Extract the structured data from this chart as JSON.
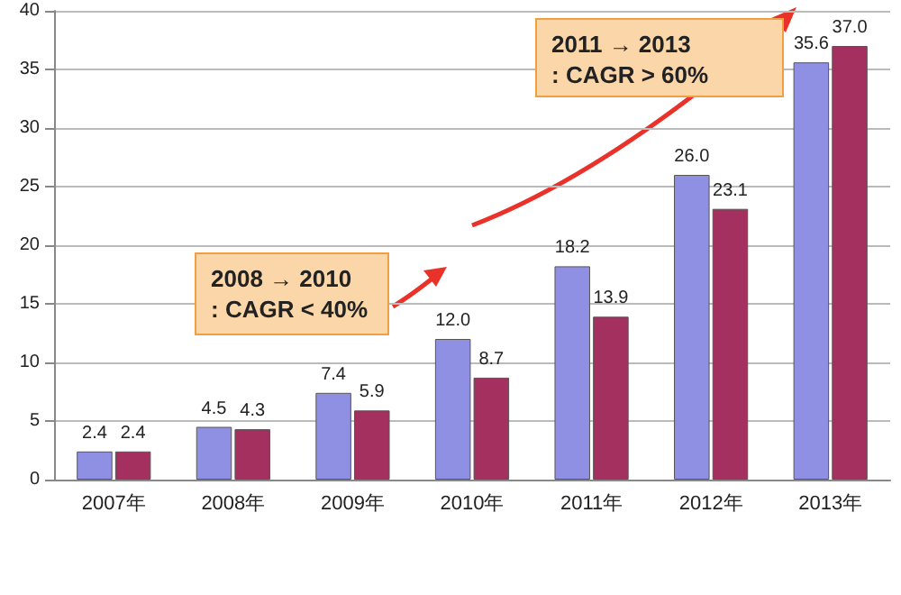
{
  "chart_data": {
    "type": "bar",
    "categories": [
      "2007年",
      "2008年",
      "2009年",
      "2010年",
      "2011年",
      "2012年",
      "2013年"
    ],
    "series": [
      {
        "color": "#8f8fe3",
        "values": [
          2.4,
          4.5,
          7.4,
          12.0,
          18.2,
          26.0,
          35.6
        ],
        "value_labels": [
          "2.4",
          "4.5",
          "7.4",
          "12.0",
          "18.2",
          "26.0",
          "35.6"
        ]
      },
      {
        "color": "#a3305f",
        "values": [
          2.4,
          4.3,
          5.9,
          8.7,
          13.9,
          23.1,
          37.0
        ],
        "value_labels": [
          "2.4",
          "4.3",
          "5.9",
          "8.7",
          "13.9",
          "23.1",
          "37.0"
        ]
      }
    ],
    "ylim": [
      0,
      40
    ],
    "yticks": [
      0,
      5,
      10,
      15,
      20,
      25,
      30,
      35,
      40
    ],
    "grid": "y",
    "annotations": [
      "2008 → 2010\n: CAGR < 40%",
      "2011 → 2013\n: CAGR > 60%"
    ]
  }
}
